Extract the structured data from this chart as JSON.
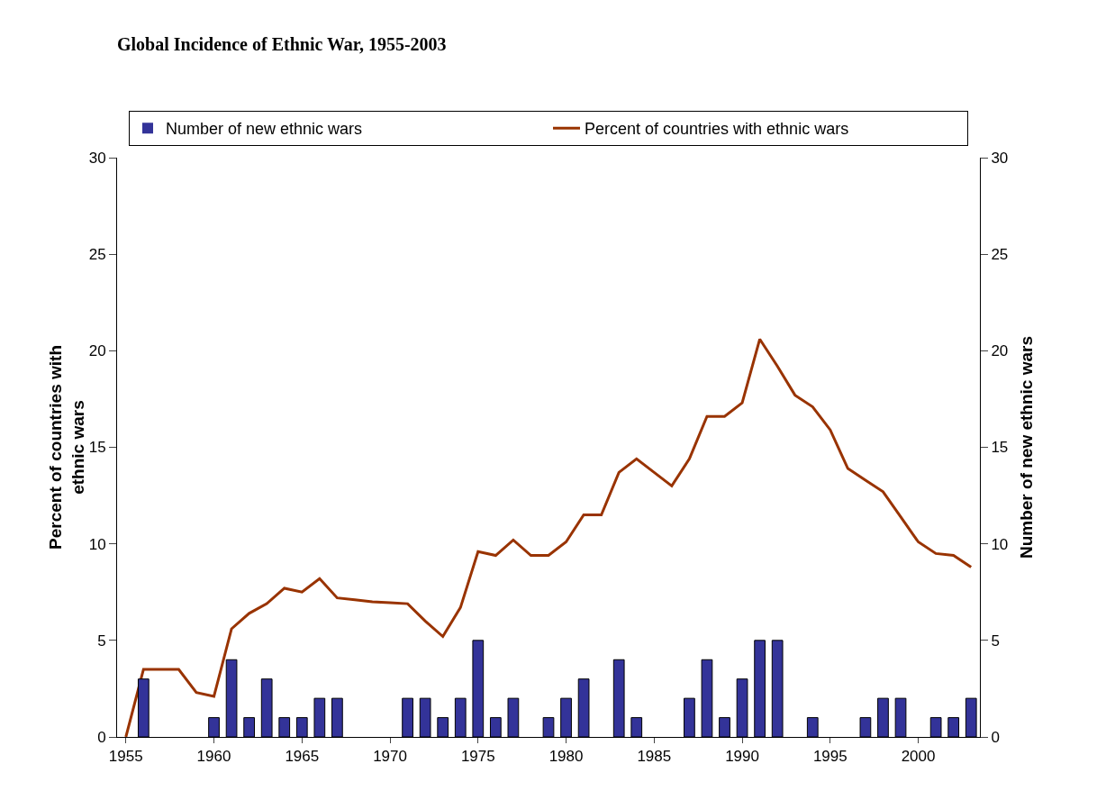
{
  "chart_data": {
    "type": "bar",
    "title": "Global Incidence of Ethnic War, 1955-2003",
    "ylabel": "Percent of countries with ethnic wars",
    "y2label": "Number of new ethnic wars",
    "x": [
      1955,
      1956,
      1957,
      1958,
      1959,
      1960,
      1961,
      1962,
      1963,
      1964,
      1965,
      1966,
      1967,
      1968,
      1969,
      1970,
      1971,
      1972,
      1973,
      1974,
      1975,
      1976,
      1977,
      1978,
      1979,
      1980,
      1981,
      1982,
      1983,
      1984,
      1985,
      1986,
      1987,
      1988,
      1989,
      1990,
      1991,
      1992,
      1993,
      1994,
      1995,
      1996,
      1997,
      1998,
      1999,
      2000,
      2001,
      2002,
      2003
    ],
    "series": [
      {
        "name": "Number of new ethnic wars",
        "axis": "y2",
        "color": "#333399",
        "values": [
          0,
          3,
          0,
          0,
          0,
          1,
          4,
          1,
          3,
          1,
          1,
          2,
          2,
          0,
          0,
          0,
          2,
          2,
          1,
          2,
          5,
          1,
          2,
          0,
          1,
          2,
          3,
          0,
          4,
          1,
          0,
          0,
          2,
          4,
          1,
          3,
          5,
          5,
          0,
          1,
          0,
          0,
          1,
          2,
          2,
          0,
          1,
          1,
          2
        ]
      },
      {
        "name": "Percent of countries with ethnic wars",
        "type": "line",
        "color": "#993300",
        "values": [
          0,
          3.5,
          3.5,
          3.5,
          2.3,
          2.1,
          5.6,
          6.4,
          6.9,
          7.7,
          7.5,
          8.2,
          7.2,
          7.1,
          7.0,
          6.95,
          6.9,
          6.0,
          5.2,
          6.7,
          9.6,
          9.4,
          10.2,
          9.4,
          9.4,
          10.1,
          11.5,
          11.5,
          13.7,
          14.4,
          13.7,
          13.0,
          14.4,
          16.6,
          16.6,
          17.3,
          20.6,
          19.2,
          17.7,
          17.1,
          15.9,
          13.9,
          13.3,
          12.7,
          11.4,
          10.1,
          9.5,
          9.4,
          8.8
        ]
      }
    ],
    "xlim": [
      1954.5,
      2003.5
    ],
    "xticks": [
      1955,
      1960,
      1965,
      1970,
      1975,
      1980,
      1985,
      1990,
      1995,
      2000
    ],
    "ylim": [
      0,
      30
    ],
    "yticks": [
      0,
      5,
      10,
      15,
      20,
      25,
      30
    ],
    "y2lim": [
      0,
      30
    ],
    "y2ticks": [
      0,
      5,
      10,
      15,
      20,
      25,
      30
    ],
    "grid": false,
    "legend": "top",
    "marker": "none",
    "line_style": "solid"
  }
}
